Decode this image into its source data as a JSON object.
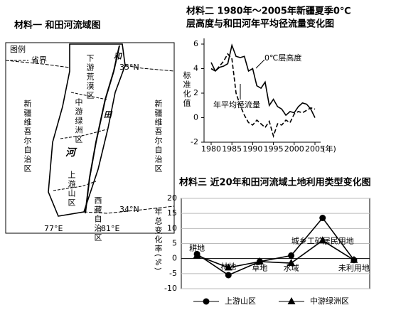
{
  "map": {
    "title": "材料一  和田河流域图",
    "legend_title": "图例",
    "legend_item": "省界",
    "region_left": "新疆维吾尔自治区",
    "region_right": "新疆维吾尔自治区",
    "river": [
      "和",
      "田",
      "河"
    ],
    "lower": "下游荒漠区",
    "middle": "中游绿洲区",
    "upper": "上游山区",
    "tibet": "西藏自治区",
    "lat": [
      "35°N",
      "34°N"
    ],
    "lon": [
      "77°E",
      "81°E"
    ]
  },
  "chart_data": [
    {
      "type": "line",
      "title": [
        "材料二  1980年～2005年新疆夏季0℃",
        "层高度与和田河年平均径流量变化图"
      ],
      "y_label": "标准化值",
      "x_unit": "(年)",
      "x": [
        1980,
        1981,
        1982,
        1983,
        1984,
        1985,
        1986,
        1987,
        1988,
        1989,
        1990,
        1991,
        1992,
        1993,
        1994,
        1995,
        1996,
        1997,
        1998,
        1999,
        2000,
        2001,
        2002,
        2003,
        2004,
        2005
      ],
      "xlim": [
        1980,
        2005
      ],
      "xticks": [
        1980,
        1985,
        1990,
        1995,
        2000,
        2005
      ],
      "ylim": [
        -2,
        6
      ],
      "yticks": [
        -2,
        0,
        2,
        4,
        6
      ],
      "series": [
        {
          "name": "0℃层高度",
          "color": "#000000",
          "dash": false,
          "values": [
            4.5,
            3.8,
            4.1,
            4.2,
            4.4,
            5.9,
            5.0,
            4.9,
            5.0,
            3.8,
            4.0,
            2.6,
            2.4,
            2.9,
            1.0,
            1.5,
            0.9,
            0.7,
            0.2,
            0.5,
            0.4,
            0.9,
            1.2,
            1.1,
            0.7,
            0.0
          ]
        },
        {
          "name": "年平均径流量",
          "color": "#000000",
          "dash": true,
          "values": [
            4.0,
            3.8,
            4.2,
            4.6,
            5.2,
            4.8,
            2.0,
            1.0,
            0.2,
            -0.4,
            -0.6,
            -0.2,
            -0.5,
            -0.8,
            -0.3,
            -1.5,
            -0.5,
            -0.6,
            -0.2,
            -0.4,
            0.3,
            0.5,
            0.4,
            0.6,
            0.8,
            0.7
          ]
        }
      ]
    },
    {
      "type": "line",
      "title": [
        "材料三  近20年和田河流域土地利用类型变化图"
      ],
      "y_label": "年总变化率(%)",
      "categories": [
        "耕地",
        "林地",
        "草地",
        "水域",
        "城乡工矿居民用地",
        "未利用地"
      ],
      "ylim": [
        -10,
        20
      ],
      "yticks": [
        -10,
        -5,
        0,
        5,
        10,
        15,
        20
      ],
      "series": [
        {
          "name": "上游山区",
          "color": "#000000",
          "marker": "circle",
          "values": [
            1.5,
            -5.5,
            -1,
            1,
            13.5,
            -0.5
          ]
        },
        {
          "name": "中游绿洲区",
          "color": "#000000",
          "marker": "triangle",
          "values": [
            1,
            -3,
            -1,
            -1.5,
            6,
            -0.5
          ]
        }
      ]
    }
  ]
}
